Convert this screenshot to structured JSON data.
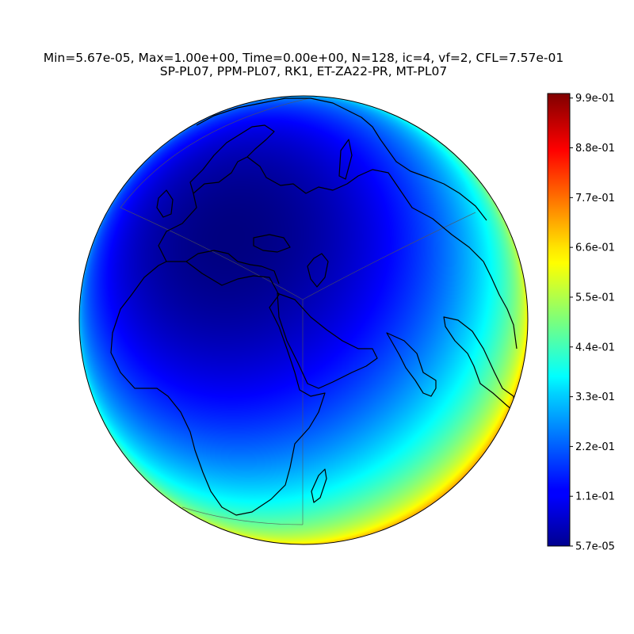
{
  "chart_data": {
    "type": "heatmap",
    "projection": "orthographic",
    "colormap": "jet",
    "title_line1": "Min=5.67e-05, Max=1.00e+00, Time=0.00e+00, N=128, ic=4, vf=2, CFL=7.57e-01",
    "title_line2": "SP-PL07, PPM-PL07, RK1, ET-ZA22-PR, MT-PL07",
    "field": {
      "min": 5.67e-05,
      "max": 1.0,
      "minimum_center": {
        "lon": 20,
        "lat": 40
      },
      "map_center": {
        "lon": 45,
        "lat": 20
      }
    },
    "colorbar": {
      "range": [
        5.67e-05,
        1.0
      ],
      "tick_values": [
        5.67e-05,
        0.11,
        0.22,
        0.33,
        0.44,
        0.55,
        0.66,
        0.77,
        0.88,
        0.99
      ],
      "tick_labels": [
        "5.7e-05",
        "1.1e-01",
        "2.2e-01",
        "3.3e-01",
        "4.4e-01",
        "5.5e-01",
        "6.6e-01",
        "7.7e-01",
        "8.8e-01",
        "9.9e-01"
      ]
    }
  }
}
